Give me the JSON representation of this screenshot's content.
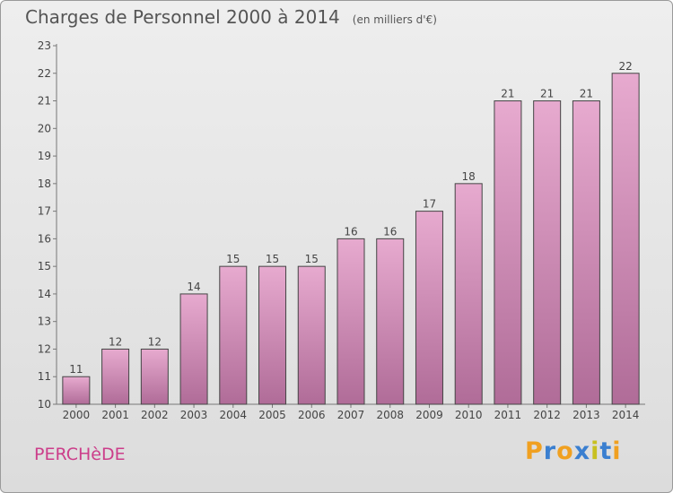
{
  "title": "Charges de Personnel 2000 à 2014",
  "unit": "(en milliers d'€)",
  "place": "PERCHèDE",
  "logo": "Proxiti",
  "colors": {
    "bar_light": "#e7aacf",
    "bar_dark": "#b06c98",
    "title": "#555555",
    "place": "#cc3d8a"
  },
  "chart_data": {
    "type": "bar",
    "title": "Charges de Personnel 2000 à 2014",
    "subtitle": "(en milliers d'€)",
    "categories": [
      "2000",
      "2001",
      "2002",
      "2003",
      "2004",
      "2005",
      "2006",
      "2007",
      "2008",
      "2009",
      "2010",
      "2011",
      "2012",
      "2013",
      "2014"
    ],
    "values": [
      11,
      12,
      12,
      14,
      15,
      15,
      15,
      16,
      16,
      17,
      18,
      21,
      21,
      21,
      22
    ],
    "ylim": [
      10,
      23
    ],
    "yticks": [
      10,
      11,
      12,
      13,
      14,
      15,
      16,
      17,
      18,
      19,
      20,
      21,
      22,
      23
    ],
    "grid": false,
    "data_labels": true
  }
}
